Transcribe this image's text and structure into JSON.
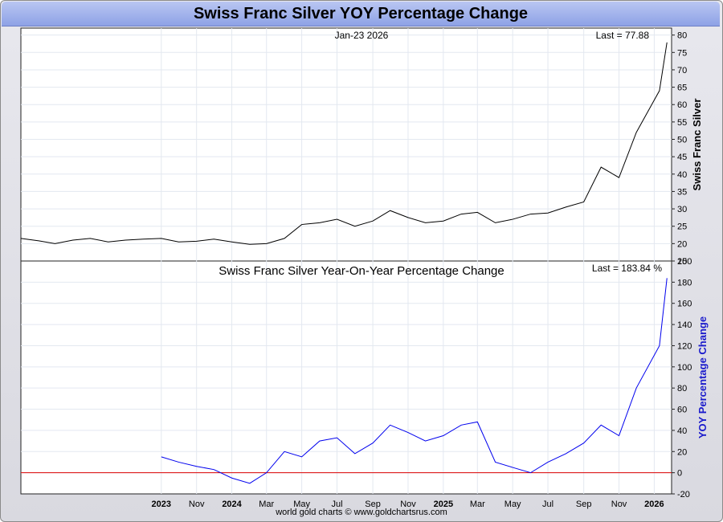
{
  "title": "Swiss Franc Silver YOY Percentage Change",
  "credit": "world gold charts © www.goldchartsrus.com",
  "colors": {
    "price_line": "#000000",
    "yoy_line": "#0000ee",
    "zero_line": "#dd0000",
    "grid": "#e3e8f0",
    "right_label_yoy": "#1a1acc"
  },
  "chart_data": [
    {
      "type": "line",
      "title": "",
      "date_label": "Jan-23  2026",
      "last_label": "Last = 77.88",
      "ylabel": "Swiss Franc Silver",
      "ylim": [
        15,
        82
      ],
      "yticks": [
        15,
        20,
        25,
        30,
        35,
        40,
        45,
        50,
        55,
        60,
        65,
        70,
        75,
        80
      ],
      "grid": true,
      "series": [
        {
          "x": [
            "2023-01",
            "2023-02",
            "2023-03",
            "2023-04",
            "2023-05",
            "2023-06",
            "2023-07",
            "2023-08",
            "2023-09",
            "2023-10",
            "2023-11",
            "2023-12",
            "2024-01",
            "2024-02",
            "2024-03",
            "2024-04",
            "2024-05",
            "2024-06",
            "2024-07",
            "2024-08",
            "2024-09",
            "2024-10",
            "2024-11",
            "2024-12",
            "2025-01",
            "2025-02",
            "2025-03",
            "2025-04",
            "2025-05",
            "2025-06",
            "2025-07",
            "2025-08",
            "2025-09",
            "2025-10",
            "2025-11",
            "2025-12",
            "2026-01-10",
            "2026-01-23"
          ],
          "values": [
            21.5,
            20.8,
            20.0,
            21.0,
            21.5,
            20.5,
            21.0,
            21.3,
            21.5,
            20.5,
            20.7,
            21.3,
            20.5,
            19.8,
            20.0,
            21.5,
            25.5,
            26.0,
            27.0,
            25.0,
            26.5,
            29.5,
            27.5,
            26.0,
            26.5,
            28.5,
            29.0,
            26.0,
            27.0,
            28.5,
            28.8,
            30.5,
            32.0,
            42.0,
            39.0,
            52.0,
            64.0,
            77.88
          ]
        }
      ]
    },
    {
      "type": "line",
      "title": "Swiss Franc Silver Year-On-Year Percentage Change",
      "last_label": "Last = 183.84 %",
      "ylabel": "YOY Percentage Change",
      "ylim": [
        -20,
        200
      ],
      "yticks": [
        -20,
        0,
        20,
        40,
        60,
        80,
        100,
        120,
        140,
        160,
        180,
        200
      ],
      "reference_line": 0,
      "grid": true,
      "xtick_labels": [
        "2023",
        "Nov",
        "2024",
        "Mar",
        "May",
        "Jul",
        "Sep",
        "Nov",
        "2025",
        "Mar",
        "May",
        "Jul",
        "Sep",
        "Nov",
        "2026"
      ],
      "xtick_dates": [
        "2023-09",
        "2023-11",
        "2024-01",
        "2024-03",
        "2024-05",
        "2024-07",
        "2024-09",
        "2024-11",
        "2025-01",
        "2025-03",
        "2025-05",
        "2025-07",
        "2025-09",
        "2025-11",
        "2026-01"
      ],
      "series": [
        {
          "x": [
            "2023-09",
            "2023-10",
            "2023-11",
            "2023-12",
            "2024-01",
            "2024-02",
            "2024-03",
            "2024-04",
            "2024-05",
            "2024-06",
            "2024-07",
            "2024-08",
            "2024-09",
            "2024-10",
            "2024-11",
            "2024-12",
            "2025-01",
            "2025-02",
            "2025-03",
            "2025-04",
            "2025-05",
            "2025-06",
            "2025-07",
            "2025-08",
            "2025-09",
            "2025-10",
            "2025-11",
            "2025-12",
            "2026-01-10",
            "2026-01-23"
          ],
          "values": [
            15,
            10,
            6,
            3,
            -5,
            -10,
            0,
            20,
            15,
            30,
            33,
            18,
            28,
            45,
            38,
            30,
            35,
            45,
            48,
            10,
            5,
            0,
            10,
            18,
            28,
            45,
            35,
            80,
            120,
            183.84
          ]
        }
      ]
    }
  ]
}
